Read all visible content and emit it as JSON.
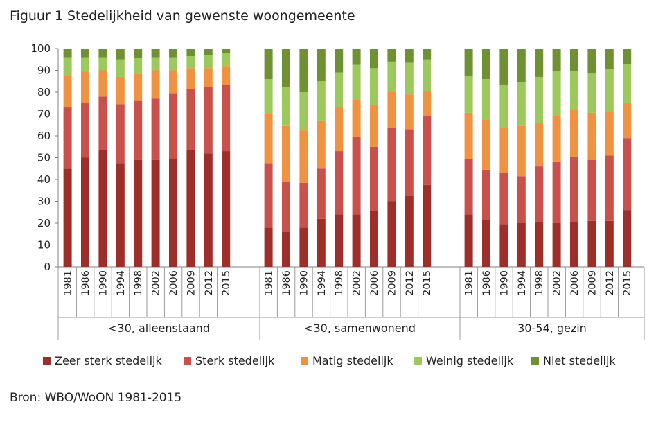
{
  "figure_title": "Figuur 1 Stedelijkheid van gewenste woongemeente",
  "source_note": "Bron: WBO/WoON 1981-2015",
  "chart_data": {
    "type": "bar",
    "stacked": true,
    "title": "",
    "xlabel": "",
    "ylabel": "",
    "ylim": [
      0,
      100
    ],
    "yticks": [
      0,
      10,
      20,
      30,
      40,
      50,
      60,
      70,
      80,
      90,
      100
    ],
    "grid": false,
    "legend_position": "bottom",
    "groups": [
      {
        "label": "<30, alleenstaand",
        "categories": [
          "1981",
          "1986",
          "1990",
          "1994",
          "1998",
          "2002",
          "2006",
          "2009",
          "2012",
          "2015"
        ],
        "series": [
          {
            "name": "Zeer sterk stedelijk",
            "values": [
              45,
              50,
              53.5,
              47.5,
              49,
              49,
              49.5,
              53.5,
              52,
              53
            ]
          },
          {
            "name": "Sterk stedelijk",
            "values": [
              28,
              25,
              24.5,
              27,
              27,
              28,
              30,
              28,
              30.5,
              30.5
            ]
          },
          {
            "name": "Matig stedelijk",
            "values": [
              14.5,
              14.5,
              12,
              12.5,
              12.5,
              13,
              10.5,
              9.5,
              8.5,
              8.5
            ]
          },
          {
            "name": "Weinig stedelijk",
            "values": [
              8.5,
              6.5,
              6,
              8,
              7,
              6,
              6,
              5.5,
              6,
              6
            ]
          },
          {
            "name": "Niet stedelijk",
            "values": [
              4,
              4,
              4,
              5,
              4.5,
              4,
              4,
              3.5,
              3,
              2
            ]
          }
        ]
      },
      {
        "label": "<30, samenwonend",
        "categories": [
          "1981",
          "1986",
          "1990",
          "1994",
          "1998",
          "2002",
          "2006",
          "2009",
          "2012",
          "2015"
        ],
        "series": [
          {
            "name": "Zeer sterk stedelijk",
            "values": [
              18,
              16,
              18,
              22,
              24,
              24,
              25.5,
              30,
              32.5,
              37.5
            ]
          },
          {
            "name": "Sterk stedelijk",
            "values": [
              29.5,
              23,
              20.5,
              23,
              29,
              35.5,
              29.5,
              33.5,
              30.5,
              31.5
            ]
          },
          {
            "name": "Matig stedelijk",
            "values": [
              22.5,
              25.5,
              24,
              22,
              20,
              17,
              19,
              16.5,
              16,
              11.5
            ]
          },
          {
            "name": "Weinig stedelijk",
            "values": [
              16,
              18,
              17.5,
              18,
              16,
              16,
              17,
              14,
              14.5,
              14.5
            ]
          },
          {
            "name": "Niet stedelijk",
            "values": [
              14,
              17.5,
              20,
              15,
              11,
              7.5,
              9,
              6,
              6.5,
              5
            ]
          }
        ]
      },
      {
        "label": "30-54, gezin",
        "categories": [
          "1981",
          "1986",
          "1990",
          "1994",
          "1998",
          "2002",
          "2006",
          "2009",
          "2012",
          "2015"
        ],
        "series": [
          {
            "name": "Zeer sterk stedelijk",
            "values": [
              24,
              21.5,
              19.5,
              20,
              20.5,
              20,
              20.5,
              21,
              21,
              26
            ]
          },
          {
            "name": "Sterk stedelijk",
            "values": [
              25.5,
              23,
              23.5,
              21.5,
              25.5,
              28,
              30,
              28,
              30,
              33
            ]
          },
          {
            "name": "Matig stedelijk",
            "values": [
              21,
              23,
              21,
              23,
              20,
              21,
              21.5,
              21.5,
              20,
              16
            ]
          },
          {
            "name": "Weinig stedelijk",
            "values": [
              17,
              18.5,
              19.5,
              20,
              21,
              20.5,
              17.5,
              18,
              19.5,
              18
            ]
          },
          {
            "name": "Niet stedelijk",
            "values": [
              12.5,
              14,
              16.5,
              15.5,
              13,
              10.5,
              10.5,
              11.5,
              9.5,
              7
            ]
          }
        ]
      }
    ],
    "colors": [
      "#9e2e2a",
      "#c9504b",
      "#f0923f",
      "#9dc85c",
      "#6f9134"
    ]
  }
}
